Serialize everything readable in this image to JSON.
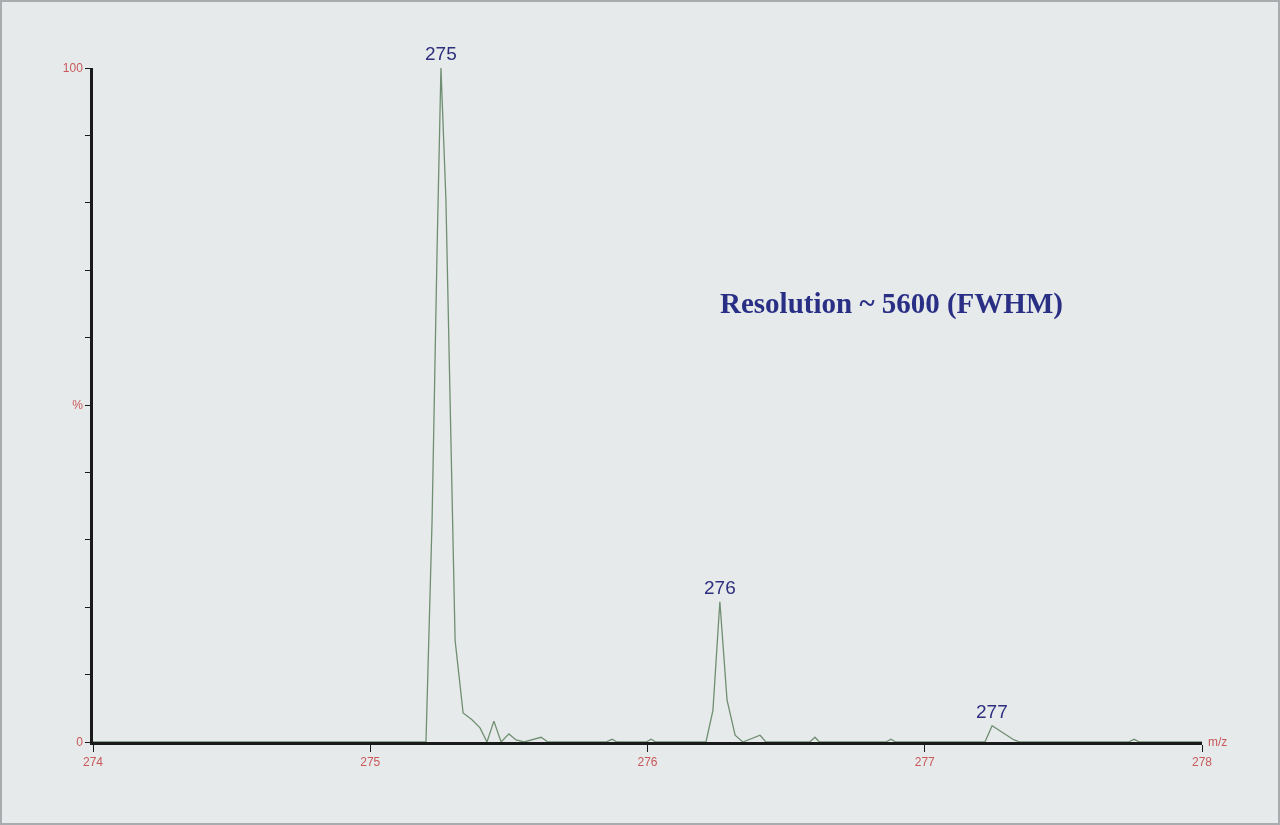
{
  "chart_data": {
    "type": "line",
    "xlabel": "m/z",
    "x": [
      274,
      275.201,
      275.223,
      275.241,
      275.255,
      275.273,
      275.288,
      275.306,
      275.335,
      275.367,
      275.396,
      275.421,
      275.446,
      275.472,
      275.5,
      275.526,
      275.555,
      275.616,
      275.641,
      275.85,
      275.872,
      275.89,
      275.995,
      276.013,
      276.03,
      276.211,
      276.236,
      276.261,
      276.287,
      276.316,
      276.344,
      276.406,
      276.427,
      276.585,
      276.604,
      276.62,
      276.86,
      276.878,
      276.895,
      277.217,
      277.243,
      277.322,
      277.344,
      277.735,
      277.755,
      277.775,
      278
    ],
    "series": [
      {
        "color": "#6f8f72",
        "values": [
          0,
          0,
          32.9,
          73,
          100,
          80.4,
          50.7,
          15.1,
          4.3,
          3.3,
          2.1,
          0,
          3.1,
          0,
          1.2,
          0.3,
          0,
          0.7,
          0,
          0,
          0.4,
          0,
          0,
          0.4,
          0,
          0,
          4.7,
          20.8,
          6.2,
          1,
          0,
          1,
          0,
          0,
          0.7,
          0,
          0,
          0.4,
          0,
          0,
          2.4,
          0.3,
          0,
          0,
          0.4,
          0,
          0
        ]
      }
    ],
    "xlim": [
      274,
      278
    ],
    "xticks": [
      274,
      275,
      276,
      277,
      278
    ],
    "ylim": [
      0,
      100
    ],
    "yticks": [
      0,
      {
        "value": 10,
        "label": null
      },
      {
        "value": 20,
        "label": null
      },
      {
        "value": 30,
        "label": null
      },
      {
        "value": 40,
        "label": null
      },
      {
        "value": 50,
        "label": "%"
      },
      {
        "value": 60,
        "label": null
      },
      {
        "value": 70,
        "label": null
      },
      {
        "value": 80,
        "label": null
      },
      {
        "value": 90,
        "label": null
      },
      100
    ],
    "grid": false,
    "legend": false,
    "marker": "none",
    "line_style": "solid",
    "annotations": [
      {
        "text": "275",
        "x": 275.255,
        "y": 100
      },
      {
        "text": "276",
        "x": 276.261,
        "y": 20.8
      },
      {
        "text": "277",
        "x": 277.243,
        "y": 2.4
      },
      "Resolution ~ 5600 (FWHM)"
    ]
  }
}
